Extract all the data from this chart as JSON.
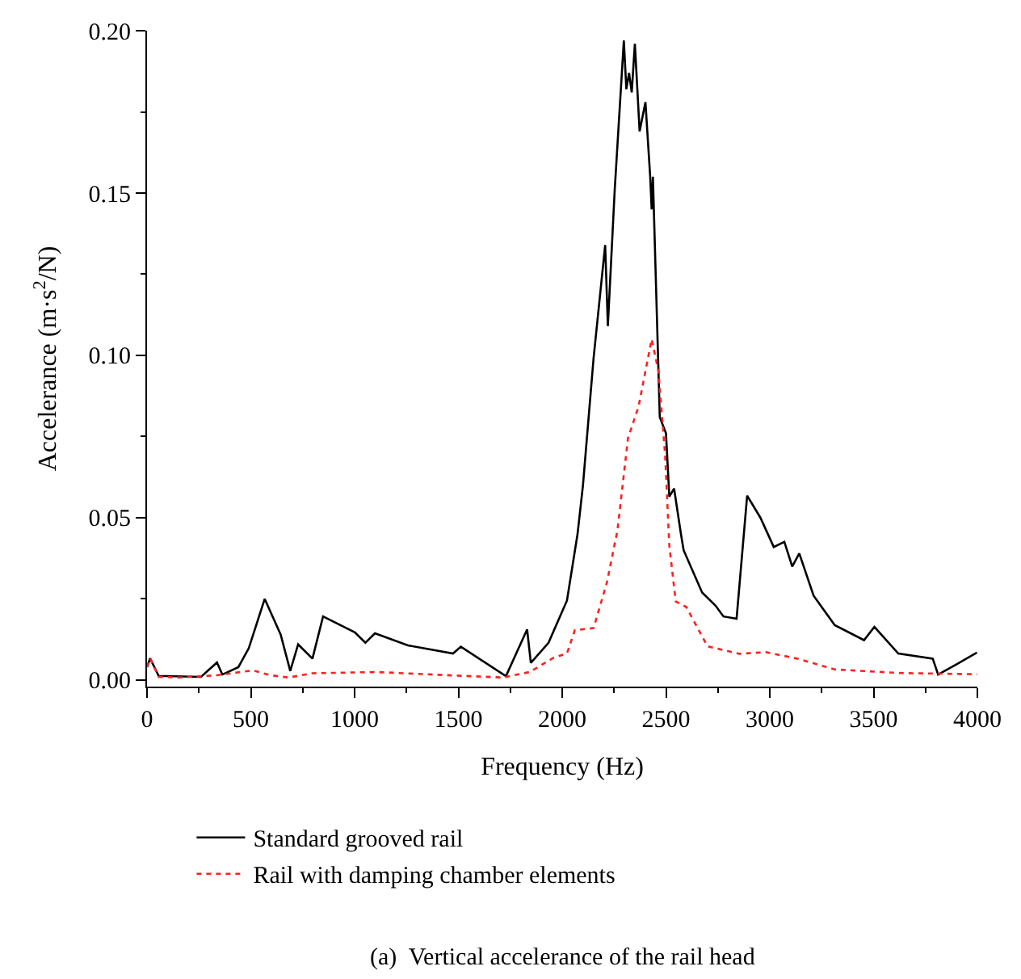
{
  "chart_data": {
    "type": "line",
    "xlabel": "Frequency (Hz)",
    "ylabel": "Accelerance (m·s$^{2}$/N)",
    "annotations": [
      "(a)  Vertical accelerance of the rail head"
    ],
    "xlim": [
      0,
      4000
    ],
    "ylim": [
      -0.002,
      0.2
    ],
    "xticks": [
      0,
      {
        "value": 250,
        "label": null
      },
      500,
      {
        "value": 750,
        "label": null
      },
      1000,
      {
        "value": 1250,
        "label": null
      },
      1500,
      {
        "value": 1750,
        "label": null
      },
      2000,
      {
        "value": 2250,
        "label": null
      },
      2500,
      {
        "value": 2750,
        "label": null
      },
      3000,
      {
        "value": 3250,
        "label": null
      },
      3500,
      {
        "value": 3750,
        "label": null
      },
      4000
    ],
    "yticks": [
      {
        "value": 0,
        "label": "0.00"
      },
      {
        "value": 0.025,
        "label": null
      },
      {
        "value": 0.05,
        "label": "0.05"
      },
      {
        "value": 0.075,
        "label": null
      },
      {
        "value": 0.1,
        "label": "0.10"
      },
      {
        "value": 0.125,
        "label": null
      },
      {
        "value": 0.15,
        "label": "0.15"
      },
      {
        "value": 0.175,
        "label": null
      },
      {
        "value": 0.2,
        "label": "0.20"
      }
    ],
    "grid": false,
    "legend": "bottom",
    "marker": "none",
    "series": [
      {
        "name": "Standard grooved rail",
        "color": "#000000",
        "line_style": "solid",
        "x": [
          0,
          15,
          56,
          260,
          337,
          363,
          440,
          490,
          567,
          644,
          690,
          728,
          797,
          848,
          1001,
          1052,
          1098,
          1257,
          1474,
          1512,
          1729,
          1831,
          1849,
          1934,
          2023,
          2074,
          2100,
          2151,
          2207,
          2220,
          2253,
          2297,
          2309,
          2322,
          2335,
          2350,
          2373,
          2401,
          2424,
          2431,
          2437,
          2470,
          2500,
          2516,
          2539,
          2572,
          2585,
          2674,
          2738,
          2777,
          2840,
          2891,
          2955,
          3019,
          3070,
          3108,
          3142,
          3211,
          3313,
          3454,
          3504,
          3619,
          3785,
          3811,
          3900,
          3998
        ],
        "values": [
          0.004,
          0.0067,
          0.0013,
          0.001,
          0.0054,
          0.0017,
          0.004,
          0.0098,
          0.025,
          0.014,
          0.0028,
          0.011,
          0.0066,
          0.0196,
          0.0147,
          0.0115,
          0.0144,
          0.0107,
          0.0082,
          0.0103,
          0.0012,
          0.0156,
          0.0053,
          0.0115,
          0.0245,
          0.045,
          0.06,
          0.099,
          0.134,
          0.109,
          0.151,
          0.197,
          0.182,
          0.187,
          0.181,
          0.196,
          0.169,
          0.178,
          0.155,
          0.145,
          0.155,
          0.081,
          0.076,
          0.0565,
          0.059,
          0.045,
          0.04,
          0.027,
          0.023,
          0.0196,
          0.0189,
          0.0568,
          0.05,
          0.041,
          0.0426,
          0.035,
          0.039,
          0.026,
          0.0169,
          0.0123,
          0.0164,
          0.0082,
          0.0066,
          0.0017,
          0.0049,
          0.0085
        ]
      },
      {
        "name": "Rail with damping chamber elements",
        "color": "#ff2020",
        "line_style": "dotted",
        "x": [
          0,
          15,
          56,
          158,
          337,
          511,
          593,
          682,
          797,
          1103,
          1487,
          1716,
          1844,
          1959,
          2023,
          2061,
          2151,
          2215,
          2266,
          2317,
          2368,
          2431,
          2464,
          2496,
          2516,
          2547,
          2598,
          2700,
          2853,
          2981,
          3134,
          3313,
          3619,
          3998
        ],
        "values": [
          0.004,
          0.0067,
          0.001,
          0.0008,
          0.0015,
          0.003,
          0.0015,
          0.0008,
          0.0021,
          0.0025,
          0.0014,
          0.0008,
          0.0025,
          0.0069,
          0.0082,
          0.0154,
          0.016,
          0.03,
          0.046,
          0.0745,
          0.0843,
          0.105,
          0.095,
          0.069,
          0.0414,
          0.0242,
          0.0225,
          0.0104,
          0.0081,
          0.0086,
          0.0066,
          0.0033,
          0.0022,
          0.0018
        ]
      }
    ]
  }
}
